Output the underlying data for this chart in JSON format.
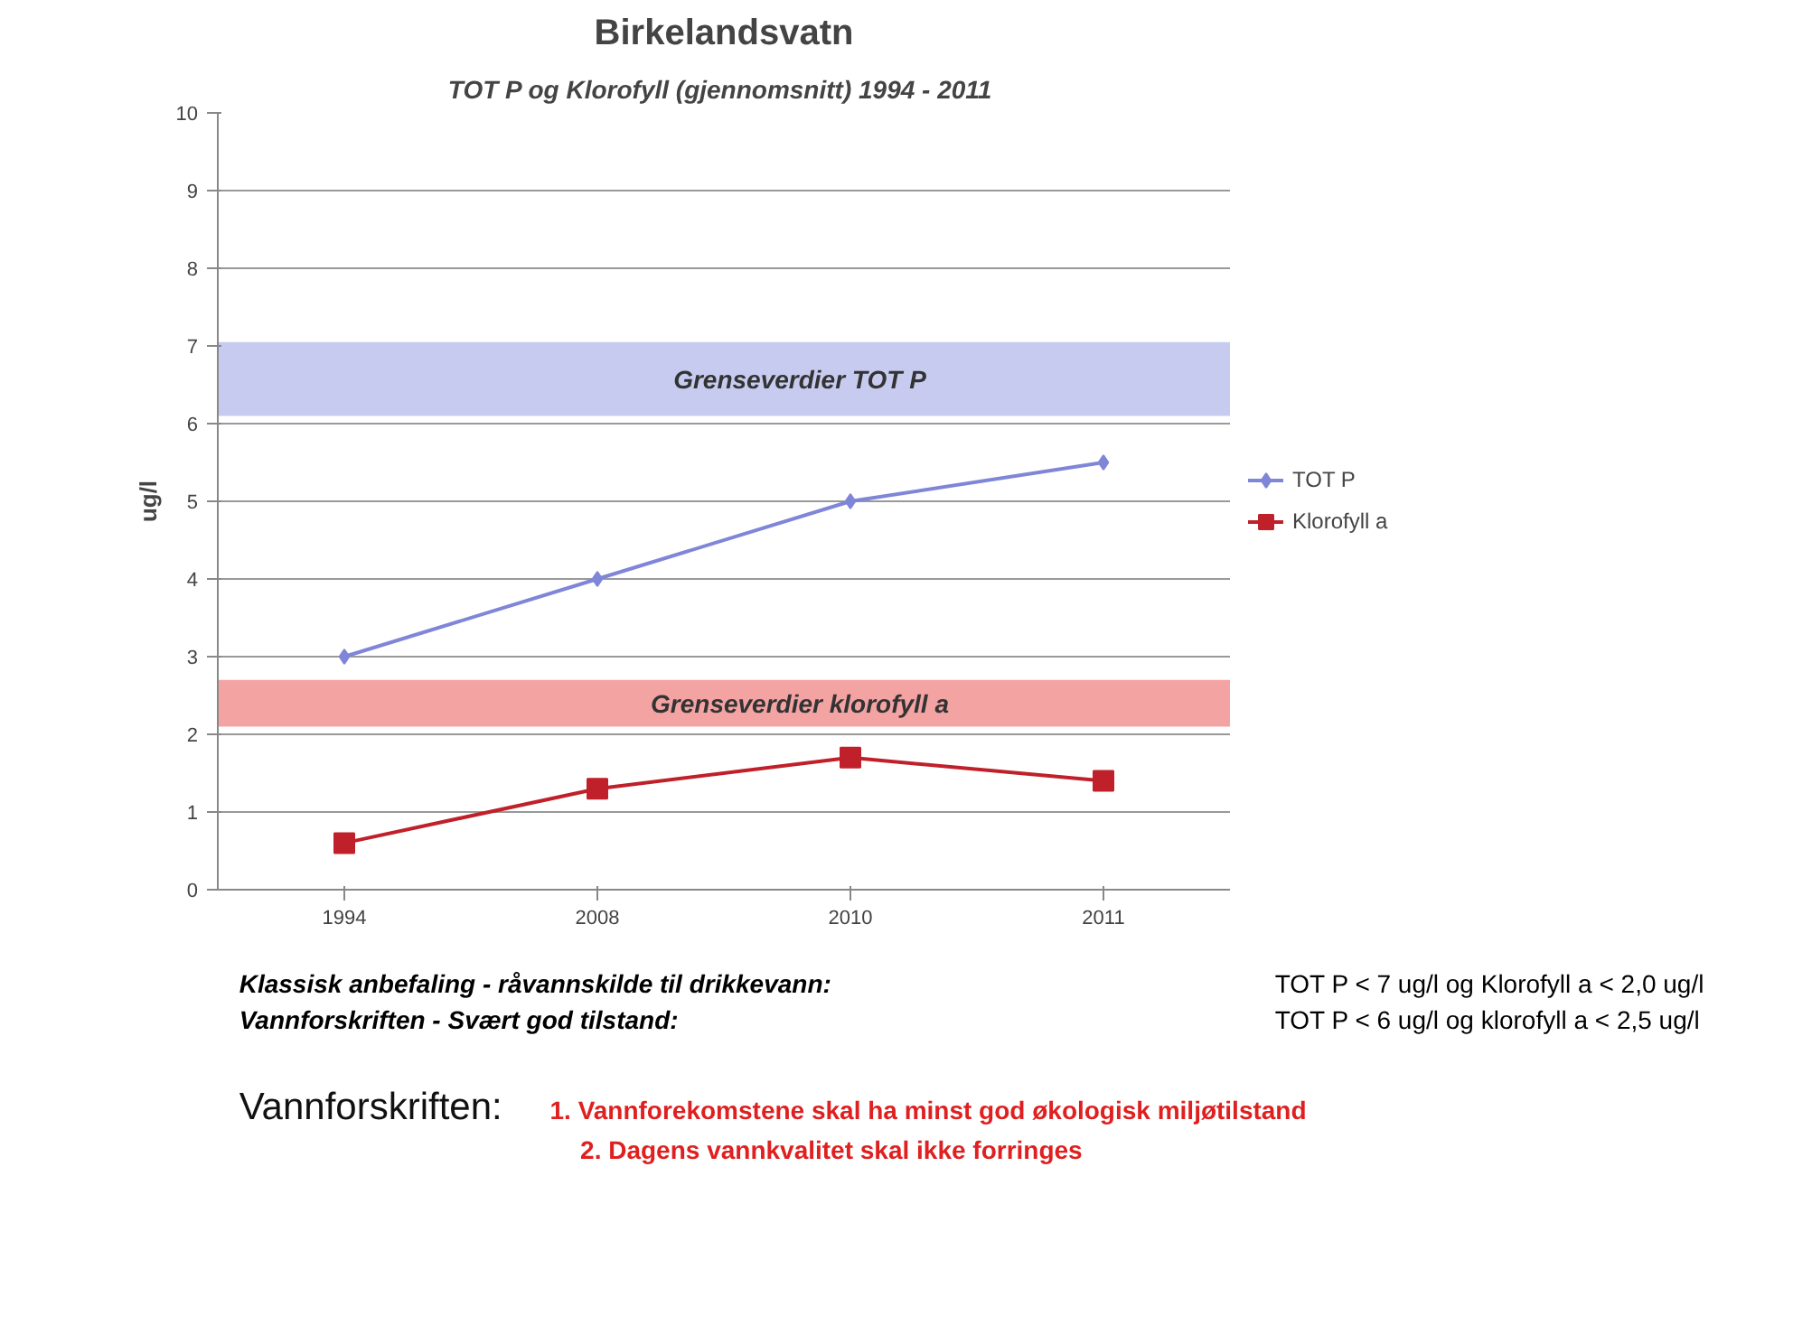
{
  "chart_data": {
    "type": "line",
    "title": "Birkelandsvatn",
    "subtitle": "TOT P og Klorofyll  (gjennomsnitt) 1994 - 2011",
    "ylabel": "ug/l",
    "categories": [
      "1994",
      "2008",
      "2010",
      "2011"
    ],
    "series": [
      {
        "name": "TOT P",
        "color": "#7f86d8",
        "marker": "diamond",
        "values": [
          3.0,
          4.0,
          5.0,
          5.5
        ]
      },
      {
        "name": "Klorofyll a",
        "color": "#c0202a",
        "marker": "square",
        "values": [
          0.6,
          1.3,
          1.7,
          1.4
        ]
      }
    ],
    "ylim": [
      0,
      10
    ],
    "yticks": [
      0,
      1,
      2,
      3,
      4,
      5,
      6,
      7,
      8,
      9,
      10
    ],
    "grid": "y",
    "legend": "right",
    "bands": [
      {
        "axis": "y",
        "from": 6.1,
        "to": 7.05,
        "label": "Grenseverdier TOT P",
        "color": "#c8cbf0"
      },
      {
        "axis": "y",
        "from": 2.1,
        "to": 2.7,
        "label": "Grenseverdier klorofyll a",
        "color": "#f4a3a3"
      }
    ],
    "annotations": [
      "Klassisk anbefaling - råvannskilde til drikkevann:",
      "TOT P < 7 ug/l og Klorofyll a < 2,0 ug/l",
      "Vannforskriften - Svært god tilstand:",
      "TOT P < 6 ug/l og klorofyll a < 2,5 ug/l",
      "Vannforskriften:",
      "1. Vannforekomstene skal ha minst god økologisk miljøtilstand",
      "2. Dagens vannkvalitet skal ikke forringes"
    ]
  }
}
